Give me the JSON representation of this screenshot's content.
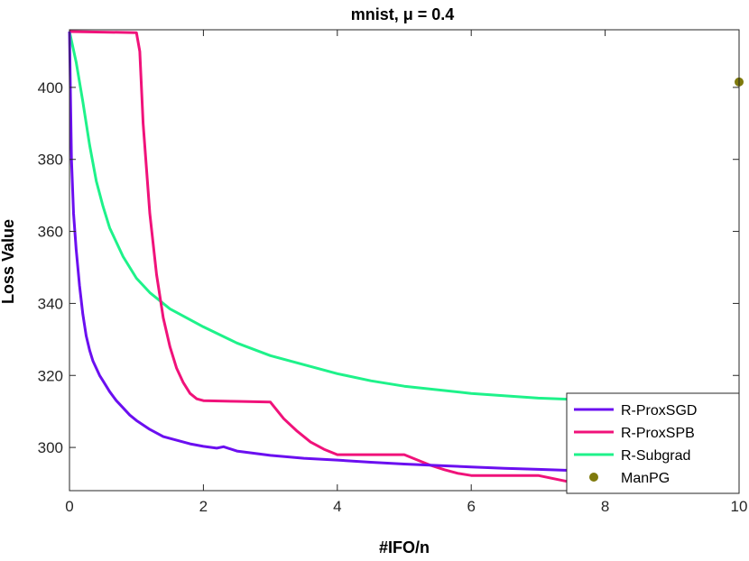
{
  "chart_data": {
    "type": "line",
    "title": "mnist, μ = 0.4",
    "xlabel": "#IFO/n",
    "ylabel": "Loss Value",
    "xlim": [
      0,
      10
    ],
    "ylim": [
      288,
      416
    ],
    "xticks": [
      0,
      2,
      4,
      6,
      8,
      10
    ],
    "yticks": [
      300,
      320,
      340,
      360,
      380,
      400
    ],
    "xtick_labels": [
      "0",
      "2",
      "4",
      "6",
      "8",
      "10"
    ],
    "ytick_labels": [
      "300",
      "320",
      "340",
      "360",
      "380",
      "400"
    ],
    "grid": false,
    "box": true,
    "legend_position": "bottom-right",
    "series": [
      {
        "name": "R-ProxSGD",
        "color": "#6b0ff0",
        "marker": "none",
        "x": [
          0,
          0.03,
          0.06,
          0.1,
          0.15,
          0.2,
          0.25,
          0.3,
          0.35,
          0.4,
          0.45,
          0.5,
          0.6,
          0.7,
          0.8,
          0.9,
          1.0,
          1.2,
          1.4,
          1.6,
          1.8,
          2.0,
          2.2,
          2.3,
          2.5,
          3.0,
          3.5,
          4.0,
          4.5,
          5.0,
          5.5,
          6.0,
          6.5,
          7.0,
          7.5,
          8.0,
          8.5,
          9.0,
          9.5,
          10.0
        ],
        "y": [
          415.5,
          380,
          365,
          355,
          345,
          337,
          331,
          327,
          324,
          322,
          320,
          318.5,
          315.5,
          313,
          311,
          309,
          307.5,
          305,
          303,
          302,
          301,
          300.3,
          299.8,
          300.2,
          299,
          297.8,
          297,
          296.5,
          295.9,
          295.4,
          295,
          294.6,
          294.2,
          293.9,
          293.6,
          293.3,
          293.0,
          292.7,
          292.4,
          292.0
        ]
      },
      {
        "name": "R-ProxSPB",
        "color": "#f0127a",
        "marker": "none",
        "x": [
          0,
          1.0,
          1.05,
          1.1,
          1.2,
          1.3,
          1.4,
          1.5,
          1.6,
          1.7,
          1.8,
          1.9,
          2.0,
          2.5,
          3.0,
          3.2,
          3.4,
          3.6,
          3.8,
          4.0,
          5.0,
          5.2,
          5.4,
          5.6,
          5.8,
          6.0,
          7.0,
          7.5,
          8.0,
          9.0,
          9.5,
          10.0
        ],
        "y": [
          415.5,
          415.2,
          410,
          390,
          365,
          348,
          336,
          328,
          322,
          318,
          315,
          313.5,
          313,
          312.8,
          312.6,
          308,
          304.5,
          301.5,
          299.5,
          298,
          298,
          296.5,
          295,
          293.8,
          292.8,
          292.2,
          292.2,
          290.3,
          289,
          289,
          288.4,
          287.8
        ]
      },
      {
        "name": "R-Subgrad",
        "color": "#1ef28a",
        "marker": "none",
        "x": [
          0,
          0.1,
          0.2,
          0.3,
          0.4,
          0.5,
          0.6,
          0.8,
          1.0,
          1.2,
          1.5,
          2.0,
          2.5,
          3.0,
          3.5,
          4.0,
          4.5,
          5.0,
          6.0,
          7.0,
          8.0,
          9.0,
          10.0
        ],
        "y": [
          415.5,
          407,
          396,
          384,
          374,
          367,
          361,
          353,
          347,
          343,
          338.5,
          333.5,
          329,
          325.5,
          323,
          320.5,
          318.5,
          317,
          315,
          313.7,
          313,
          312.6,
          312.2
        ]
      },
      {
        "name": "ManPG",
        "color": "#7f7a0c",
        "marker": "circle",
        "x": [
          10
        ],
        "y": [
          401.5
        ]
      }
    ]
  }
}
